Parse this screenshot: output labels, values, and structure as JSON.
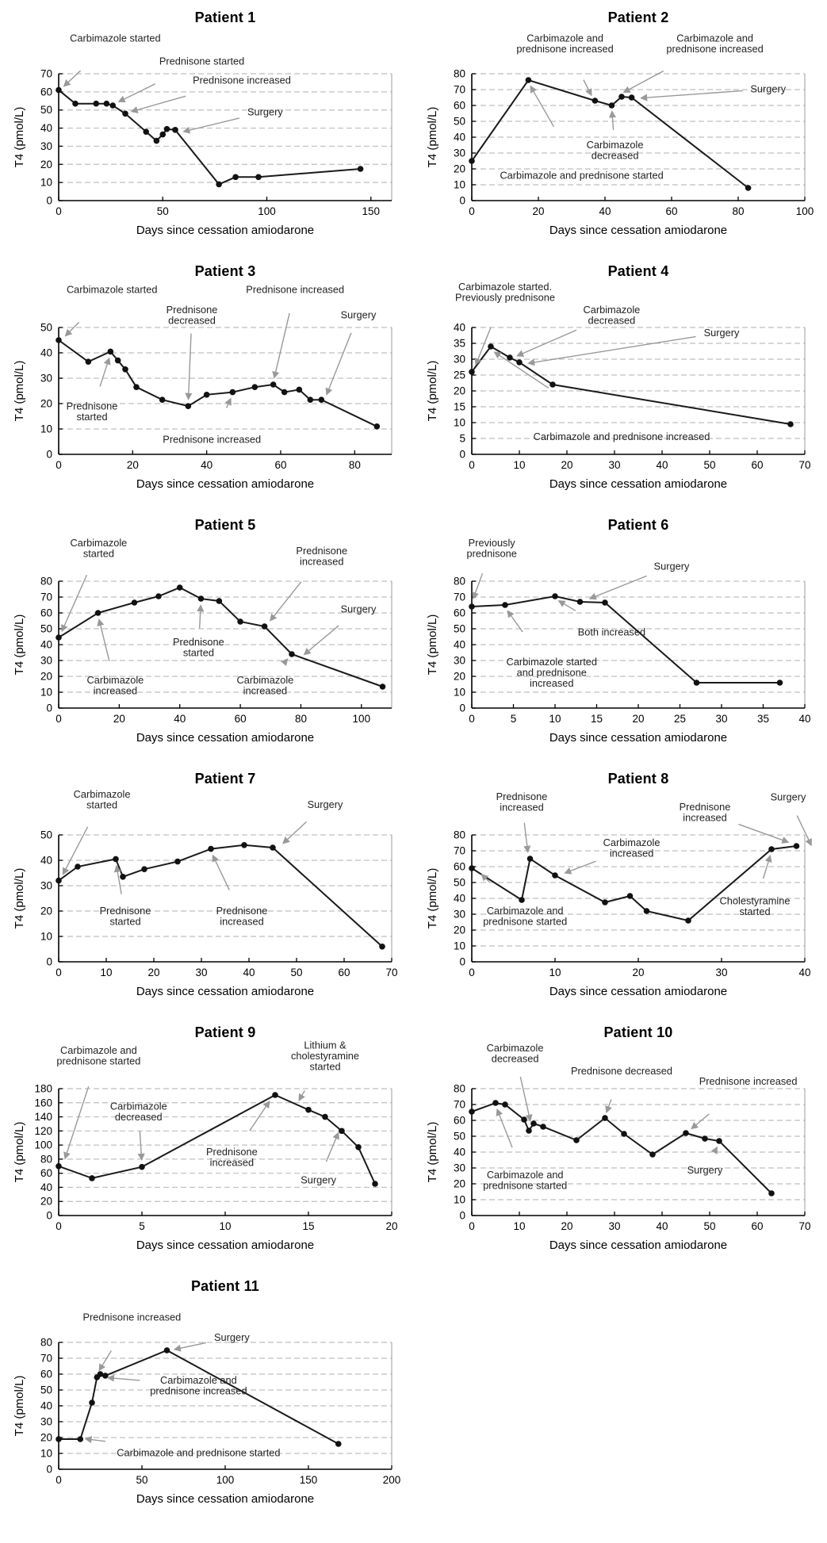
{
  "figure": {
    "xlabel": "Days since cessation amiodarone",
    "ylabel": "T4 (pmol/L)",
    "line_color": "#1a1a1a",
    "marker_color": "#111111",
    "grid_color": "#bfbfbf",
    "arrow_color": "#999999",
    "annotation_text_color": "#222222"
  },
  "chart_data": [
    {
      "type": "line",
      "title": "Patient 1",
      "xlabel": "Days since cessation amiodarone",
      "ylabel": "T4 (pmol/L)",
      "xlim": [
        0,
        160
      ],
      "ylim": [
        0,
        70
      ],
      "xticks": [
        0,
        50,
        100,
        150
      ],
      "yticks": [
        0,
        10,
        20,
        30,
        40,
        50,
        60,
        70
      ],
      "x": [
        0,
        8,
        18,
        23,
        26,
        32,
        42,
        47,
        50,
        52,
        56,
        77,
        85,
        96,
        145
      ],
      "y": [
        61,
        53.5,
        53.5,
        53.5,
        52.5,
        48,
        38,
        33,
        36.5,
        39.5,
        39,
        9,
        13,
        13,
        17.5
      ],
      "annotations": [
        {
          "text": [
            "Carbimazole started"
          ],
          "lx": 0.17,
          "ly": -0.28,
          "tx": 1,
          "ty": 61.5
        },
        {
          "text": [
            "Prednisone started"
          ],
          "lx": 0.43,
          "ly": -0.1,
          "tx": 27,
          "ty": 53.5
        },
        {
          "text": [
            "Prednisone increased"
          ],
          "lx": 0.55,
          "ly": 0.05,
          "tx": 33,
          "ty": 48.5
        },
        {
          "text": [
            "Surgery"
          ],
          "lx": 0.62,
          "ly": 0.3,
          "tx": 58,
          "ty": 37.5
        }
      ]
    },
    {
      "type": "line",
      "title": "Patient 2",
      "xlabel": "Days since cessation amiodarone",
      "ylabel": "T4 (pmol/L)",
      "xlim": [
        0,
        100
      ],
      "ylim": [
        0,
        80
      ],
      "xticks": [
        0,
        20,
        40,
        60,
        80,
        100
      ],
      "yticks": [
        0,
        10,
        20,
        30,
        40,
        50,
        60,
        70,
        80
      ],
      "x": [
        0,
        17,
        37,
        42,
        45,
        48,
        83
      ],
      "y": [
        25,
        76,
        63,
        60,
        65.5,
        65,
        8
      ],
      "annotations": [
        {
          "text": [
            "Carbimazole and",
            "prednisone increased"
          ],
          "lx": 0.28,
          "ly": -0.24,
          "tx": 36.5,
          "ty": 64
        },
        {
          "text": [
            "Carbimazole and",
            "prednisone increased"
          ],
          "lx": 0.73,
          "ly": -0.24,
          "tx": 44.5,
          "ty": 67
        },
        {
          "text": [
            "Surgery"
          ],
          "lx": 0.89,
          "ly": 0.12,
          "tx": 49.5,
          "ty": 64.5
        },
        {
          "text": [
            "Carbimazole",
            "decreased"
          ],
          "lx": 0.43,
          "ly": 0.6,
          "tx": 42,
          "ty": 59
        },
        {
          "text": [
            "Carbimazole and prednisone started"
          ],
          "lx": 0.33,
          "ly": 0.8,
          "tx": 17,
          "ty": 74.5
        }
      ]
    },
    {
      "type": "line",
      "title": "Patient 3",
      "xlabel": "Days since cessation amiodarone",
      "ylabel": "T4 (pmol/L)",
      "xlim": [
        0,
        90
      ],
      "ylim": [
        0,
        50
      ],
      "xticks": [
        0,
        20,
        40,
        60,
        80
      ],
      "yticks": [
        0,
        10,
        20,
        30,
        40,
        50
      ],
      "x": [
        0,
        8,
        14,
        16,
        18,
        21,
        28,
        35,
        40,
        47,
        53,
        58,
        61,
        65,
        68,
        71,
        86
      ],
      "y": [
        45,
        36.5,
        40.5,
        37,
        33.5,
        26.5,
        21.5,
        19,
        23.5,
        24.5,
        26.5,
        27.5,
        24.5,
        25.5,
        21.5,
        21.5,
        11
      ],
      "annotations": [
        {
          "text": [
            "Carbimazole started"
          ],
          "lx": 0.16,
          "ly": -0.3,
          "tx": 1,
          "ty": 45.5
        },
        {
          "text": [
            "Prednisone",
            "decreased"
          ],
          "lx": 0.4,
          "ly": -0.1,
          "tx": 35,
          "ty": 20
        },
        {
          "text": [
            "Prednisone increased"
          ],
          "lx": 0.71,
          "ly": -0.3,
          "tx": 58,
          "ty": 28.5
        },
        {
          "text": [
            "Surgery"
          ],
          "lx": 0.9,
          "ly": -0.1,
          "tx": 72,
          "ty": 22
        },
        {
          "text": [
            "Prednisone",
            "started"
          ],
          "lx": 0.1,
          "ly": 0.66,
          "tx": 14,
          "ty": 39.5
        },
        {
          "text": [
            "Prednisone increased"
          ],
          "lx": 0.46,
          "ly": 0.88,
          "tx": 47,
          "ty": 23.5
        }
      ]
    },
    {
      "type": "line",
      "title": "Patient 4",
      "xlabel": "Days since cessation amiodarone",
      "ylabel": "T4 (pmol/L)",
      "xlim": [
        0,
        70
      ],
      "ylim": [
        0,
        40
      ],
      "xticks": [
        0,
        10,
        20,
        30,
        40,
        50,
        60,
        70
      ],
      "yticks": [
        0,
        5,
        10,
        15,
        20,
        25,
        30,
        35,
        40
      ],
      "x": [
        0,
        4,
        8,
        10,
        17,
        67
      ],
      "y": [
        26,
        34,
        30.5,
        29,
        22,
        9.5
      ],
      "annotations": [
        {
          "text": [
            "Carbimazole started.",
            "Previously prednisone"
          ],
          "lx": 0.1,
          "ly": -0.28,
          "tx": 0.5,
          "ty": 27
        },
        {
          "text": [
            "Carbimazole",
            "decreased"
          ],
          "lx": 0.42,
          "ly": -0.1,
          "tx": 8.7,
          "ty": 30.5
        },
        {
          "text": [
            "Surgery"
          ],
          "lx": 0.75,
          "ly": 0.04,
          "tx": 11,
          "ty": 28.5
        },
        {
          "text": [
            "Carbimazole and prednisone increased"
          ],
          "lx": 0.45,
          "ly": 0.86,
          "tx": 4,
          "ty": 33
        }
      ]
    },
    {
      "type": "line",
      "title": "Patient 5",
      "xlabel": "Days since cessation amiodarone",
      "ylabel": "T4 (pmol/L)",
      "xlim": [
        0,
        110
      ],
      "ylim": [
        0,
        80
      ],
      "xticks": [
        0,
        20,
        40,
        60,
        80,
        100
      ],
      "yticks": [
        0,
        10,
        20,
        30,
        40,
        50,
        60,
        70,
        80
      ],
      "x": [
        0,
        13,
        25,
        33,
        40,
        47,
        53,
        60,
        68,
        77,
        107
      ],
      "y": [
        44.5,
        60,
        66.5,
        70.5,
        76,
        69,
        67.5,
        54.5,
        51.5,
        34,
        13.5
      ],
      "annotations": [
        {
          "text": [
            "Carbimazole",
            "started"
          ],
          "lx": 0.12,
          "ly": -0.26,
          "tx": 0.5,
          "ty": 46
        },
        {
          "text": [
            "Prednisone",
            "increased"
          ],
          "lx": 0.79,
          "ly": -0.2,
          "tx": 69,
          "ty": 53
        },
        {
          "text": [
            "Surgery"
          ],
          "lx": 0.9,
          "ly": 0.22,
          "tx": 80,
          "ty": 32
        },
        {
          "text": [
            "Prednisone",
            "started"
          ],
          "lx": 0.42,
          "ly": 0.52,
          "tx": 47,
          "ty": 67.5
        },
        {
          "text": [
            "Carbimazole",
            "increased"
          ],
          "lx": 0.17,
          "ly": 0.82,
          "tx": 13,
          "ty": 58.5
        },
        {
          "text": [
            "Carbimazole",
            "increased"
          ],
          "lx": 0.62,
          "ly": 0.82,
          "tx": 76.5,
          "ty": 33
        }
      ]
    },
    {
      "type": "line",
      "title": "Patient 6",
      "xlabel": "Days since cessation amiodarone",
      "ylabel": "T4 (pmol/L)",
      "xlim": [
        0,
        40
      ],
      "ylim": [
        0,
        80
      ],
      "xticks": [
        0,
        5,
        10,
        15,
        20,
        25,
        30,
        35,
        40
      ],
      "yticks": [
        0,
        10,
        20,
        30,
        40,
        50,
        60,
        70,
        80
      ],
      "x": [
        0,
        4,
        10,
        13,
        16,
        27,
        37
      ],
      "y": [
        64,
        65,
        70.5,
        67,
        66.5,
        16,
        16
      ],
      "annotations": [
        {
          "text": [
            "Previously",
            "prednisone"
          ],
          "lx": 0.06,
          "ly": -0.26,
          "tx": 0,
          "ty": 66.5
        },
        {
          "text": [
            "Surgery"
          ],
          "lx": 0.6,
          "ly": -0.12,
          "tx": 13.7,
          "ty": 68
        },
        {
          "text": [
            "Both increased"
          ],
          "lx": 0.42,
          "ly": 0.4,
          "tx": 10,
          "ty": 69
        },
        {
          "text": [
            "Carbimazole started",
            "and prednisone",
            "increased"
          ],
          "lx": 0.24,
          "ly": 0.72,
          "tx": 4,
          "ty": 63.5
        }
      ]
    },
    {
      "type": "line",
      "title": "Patient 7",
      "xlabel": "Days since cessation amiodarone",
      "ylabel": "T4 (pmol/L)",
      "xlim": [
        0,
        70
      ],
      "ylim": [
        0,
        50
      ],
      "xticks": [
        0,
        10,
        20,
        30,
        40,
        50,
        60,
        70
      ],
      "yticks": [
        0,
        10,
        20,
        30,
        40,
        50
      ],
      "x": [
        0,
        4,
        12,
        13.5,
        18,
        25,
        32,
        39,
        45,
        68
      ],
      "y": [
        32,
        37.5,
        40.5,
        33.5,
        36.5,
        39.5,
        44.5,
        46,
        45,
        6
      ],
      "annotations": [
        {
          "text": [
            "Carbimazole",
            "started"
          ],
          "lx": 0.13,
          "ly": -0.28,
          "tx": 0.5,
          "ty": 33
        },
        {
          "text": [
            "Surgery"
          ],
          "lx": 0.8,
          "ly": -0.24,
          "tx": 46.5,
          "ty": 45.5
        },
        {
          "text": [
            "Prednisone",
            "started"
          ],
          "lx": 0.2,
          "ly": 0.64,
          "tx": 12,
          "ty": 39.5
        },
        {
          "text": [
            "Prednisone",
            "increased"
          ],
          "lx": 0.55,
          "ly": 0.64,
          "tx": 32,
          "ty": 43.5
        }
      ]
    },
    {
      "type": "line",
      "title": "Patient 8",
      "xlabel": "Days since cessation amiodarone",
      "ylabel": "T4 (pmol/L)",
      "xlim": [
        0,
        40
      ],
      "ylim": [
        0,
        80
      ],
      "xticks": [
        0,
        10,
        20,
        30,
        40
      ],
      "yticks": [
        0,
        10,
        20,
        30,
        40,
        50,
        60,
        70,
        80
      ],
      "x": [
        0,
        6,
        7,
        10,
        16,
        19,
        21,
        26,
        36,
        39
      ],
      "y": [
        59,
        39,
        65,
        54.5,
        37.5,
        41.5,
        32,
        26,
        71,
        73
      ],
      "annotations": [
        {
          "text": [
            "Prednisone",
            "increased"
          ],
          "lx": 0.15,
          "ly": -0.26,
          "tx": 6.8,
          "ty": 66.5
        },
        {
          "text": [
            "Prednisone",
            "increased"
          ],
          "lx": 0.7,
          "ly": -0.18,
          "tx": 38.5,
          "ty": 74.5
        },
        {
          "text": [
            "Surgery"
          ],
          "lx": 0.95,
          "ly": -0.3,
          "tx": 41,
          "ty": 71
        },
        {
          "text": [
            "Carbimazole",
            "increased"
          ],
          "lx": 0.48,
          "ly": 0.1,
          "tx": 10.7,
          "ty": 55
        },
        {
          "text": [
            "Carbimazole and",
            "prednisone started"
          ],
          "lx": 0.16,
          "ly": 0.64,
          "tx": 0.8,
          "ty": 57
        },
        {
          "text": [
            "Cholestyramine",
            "started"
          ],
          "lx": 0.85,
          "ly": 0.56,
          "tx": 36,
          "ty": 69.5
        }
      ]
    },
    {
      "type": "line",
      "title": "Patient 9",
      "xlabel": "Days since cessation amiodarone",
      "ylabel": "T4 (pmol/L)",
      "xlim": [
        0,
        20
      ],
      "ylim": [
        0,
        180
      ],
      "xticks": [
        0,
        5,
        10,
        15,
        20
      ],
      "yticks": [
        0,
        20,
        40,
        60,
        80,
        100,
        120,
        140,
        160,
        180
      ],
      "x": [
        0,
        2,
        5,
        13,
        15,
        16,
        17,
        18,
        19
      ],
      "y": [
        70,
        53,
        69,
        171,
        150,
        140,
        120,
        97,
        45
      ],
      "annotations": [
        {
          "text": [
            "Carbimazole and",
            "prednisone started"
          ],
          "lx": 0.12,
          "ly": -0.26,
          "tx": 0.3,
          "ty": 75
        },
        {
          "text": [
            "Lithium &",
            "cholestyramine",
            "started"
          ],
          "lx": 0.8,
          "ly": -0.26,
          "tx": 14.3,
          "ty": 158
        },
        {
          "text": [
            "Carbimazole",
            "decreased"
          ],
          "lx": 0.24,
          "ly": 0.18,
          "tx": 5,
          "ty": 73
        },
        {
          "text": [
            "Prednisone",
            "increased"
          ],
          "lx": 0.52,
          "ly": 0.54,
          "tx": 12.8,
          "ty": 167
        },
        {
          "text": [
            "Surgery"
          ],
          "lx": 0.78,
          "ly": 0.72,
          "tx": 16.9,
          "ty": 123
        }
      ]
    },
    {
      "type": "line",
      "title": "Patient 10",
      "xlabel": "Days since cessation amiodarone",
      "ylabel": "T4 (pmol/L)",
      "xlim": [
        0,
        70
      ],
      "ylim": [
        0,
        80
      ],
      "xticks": [
        0,
        10,
        20,
        30,
        40,
        50,
        60,
        70
      ],
      "yticks": [
        0,
        10,
        20,
        30,
        40,
        50,
        60,
        70,
        80
      ],
      "x": [
        0,
        5,
        7,
        11,
        12,
        13,
        15,
        22,
        28,
        32,
        38,
        45,
        49,
        52,
        63
      ],
      "y": [
        65.5,
        71,
        70,
        60.5,
        53.5,
        58,
        56,
        47.5,
        61.5,
        51.5,
        38.5,
        52,
        48.5,
        47,
        14
      ],
      "annotations": [
        {
          "text": [
            "Carbimazole",
            "decreased"
          ],
          "lx": 0.13,
          "ly": -0.28,
          "tx": 12.5,
          "ty": 57
        },
        {
          "text": [
            "Prednisone decreased"
          ],
          "lx": 0.45,
          "ly": -0.14,
          "tx": 28,
          "ty": 62.5
        },
        {
          "text": [
            "Prednisone increased"
          ],
          "lx": 0.83,
          "ly": -0.06,
          "tx": 45.5,
          "ty": 53
        },
        {
          "text": [
            "Carbimazole and",
            "prednisone started"
          ],
          "lx": 0.16,
          "ly": 0.72,
          "tx": 5,
          "ty": 69.5
        },
        {
          "text": [
            "Surgery"
          ],
          "lx": 0.7,
          "ly": 0.64,
          "tx": 52,
          "ty": 45.5
        }
      ]
    },
    {
      "type": "line",
      "title": "Patient 11",
      "xlabel": "Days since cessation amiodarone",
      "ylabel": "T4 (pmol/L)",
      "xlim": [
        0,
        200
      ],
      "ylim": [
        0,
        80
      ],
      "xticks": [
        0,
        50,
        100,
        150,
        200
      ],
      "yticks": [
        0,
        10,
        20,
        30,
        40,
        50,
        60,
        70,
        80
      ],
      "x": [
        0,
        13,
        20,
        23,
        25,
        28,
        65,
        168
      ],
      "y": [
        19,
        19,
        42,
        58,
        60,
        59,
        75,
        16
      ],
      "annotations": [
        {
          "text": [
            "Prednisone increased"
          ],
          "lx": 0.22,
          "ly": -0.2,
          "tx": 23,
          "ty": 60
        },
        {
          "text": [
            "Surgery"
          ],
          "lx": 0.52,
          "ly": -0.04,
          "tx": 67,
          "ty": 75
        },
        {
          "text": [
            "Carbimazole and",
            "prednisone increased"
          ],
          "lx": 0.42,
          "ly": 0.34,
          "tx": 27,
          "ty": 58
        },
        {
          "text": [
            "Carbimazole and prednisone started"
          ],
          "lx": 0.42,
          "ly": 0.87,
          "tx": 13.5,
          "ty": 19.5
        }
      ]
    }
  ]
}
